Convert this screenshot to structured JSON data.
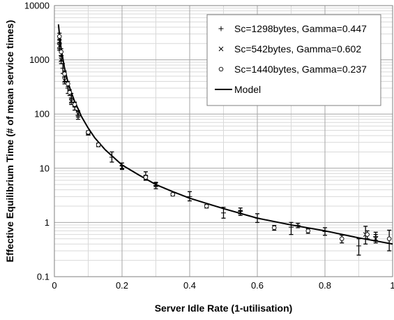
{
  "chart_data": {
    "type": "scatter",
    "title": "",
    "xlabel": "Server Idle Rate (1-utilisation)",
    "ylabel": "Effective Equilibrium Time (# of mean service times)",
    "xlim": [
      0,
      1
    ],
    "ylim": [
      0.1,
      10000
    ],
    "yscale": "log",
    "x_ticks": [
      "0",
      "0.2",
      "0.4",
      "0.6",
      "0.8",
      "1"
    ],
    "y_ticks": [
      "0.1",
      "1",
      "10",
      "100",
      "1000",
      "10000"
    ],
    "grid": true,
    "legend": {
      "position": "top-right",
      "entries": [
        "Sc=1298bytes, Gamma=0.447",
        "Sc=542bytes, Gamma=0.602",
        "Sc=1440bytes, Gamma=0.237",
        "Model"
      ]
    },
    "series": [
      {
        "name": "Sc=1298bytes, Gamma=0.447",
        "marker": "plus",
        "points": [
          {
            "x": 0.015,
            "y": 2000,
            "lo": 1600,
            "hi": 2400
          },
          {
            "x": 0.02,
            "y": 1200,
            "lo": 950,
            "hi": 1450
          },
          {
            "x": 0.025,
            "y": 700,
            "lo": 560,
            "hi": 850
          },
          {
            "x": 0.03,
            "y": 480,
            "lo": 390,
            "hi": 580
          },
          {
            "x": 0.04,
            "y": 300,
            "lo": 240,
            "hi": 360
          },
          {
            "x": 0.05,
            "y": 200,
            "lo": 165,
            "hi": 240
          },
          {
            "x": 0.06,
            "y": 140,
            "lo": 118,
            "hi": 165
          },
          {
            "x": 0.07,
            "y": 95,
            "lo": 80,
            "hi": 115
          },
          {
            "x": 0.1,
            "y": 45,
            "lo": 42,
            "hi": 48
          },
          {
            "x": 0.17,
            "y": 16,
            "lo": 13,
            "hi": 20
          },
          {
            "x": 0.2,
            "y": 11,
            "lo": 9.5,
            "hi": 12.5
          },
          {
            "x": 0.27,
            "y": 7.2,
            "lo": 6,
            "hi": 8.6
          },
          {
            "x": 0.3,
            "y": 4.8,
            "lo": 4.2,
            "hi": 5.5
          },
          {
            "x": 0.4,
            "y": 3,
            "lo": 2.5,
            "hi": 3.7
          },
          {
            "x": 0.5,
            "y": 1.5,
            "lo": 1.2,
            "hi": 1.9
          },
          {
            "x": 0.55,
            "y": 1.6,
            "lo": 1.35,
            "hi": 1.85
          },
          {
            "x": 0.6,
            "y": 1.2,
            "lo": 1,
            "hi": 1.45
          },
          {
            "x": 0.7,
            "y": 0.82,
            "lo": 0.6,
            "hi": 1
          },
          {
            "x": 0.72,
            "y": 0.88,
            "lo": 0.8,
            "hi": 0.96
          },
          {
            "x": 0.8,
            "y": 0.68,
            "lo": 0.58,
            "hi": 0.8
          },
          {
            "x": 0.9,
            "y": 0.37,
            "lo": 0.25,
            "hi": 0.5
          },
          {
            "x": 0.95,
            "y": 0.55,
            "lo": 0.45,
            "hi": 0.66
          }
        ]
      },
      {
        "name": "Sc=542bytes, Gamma=0.602",
        "marker": "cross",
        "points": [
          {
            "x": 0.015,
            "y": 1800,
            "lo": 1500,
            "hi": 2100
          },
          {
            "x": 0.02,
            "y": 1000,
            "lo": 850,
            "hi": 1150
          },
          {
            "x": 0.03,
            "y": 420,
            "lo": 360,
            "hi": 480
          },
          {
            "x": 0.05,
            "y": 170,
            "lo": 150,
            "hi": 190
          },
          {
            "x": 0.07,
            "y": 100,
            "lo": 88,
            "hi": 112
          },
          {
            "x": 0.1,
            "y": 44,
            "lo": 41,
            "hi": 47
          },
          {
            "x": 0.2,
            "y": 10.5,
            "lo": 9.8,
            "hi": 11.2
          },
          {
            "x": 0.3,
            "y": 5,
            "lo": 4.6,
            "hi": 5.4
          },
          {
            "x": 0.55,
            "y": 1.55,
            "lo": 1.45,
            "hi": 1.65
          },
          {
            "x": 0.92,
            "y": 0.6,
            "lo": 0.4,
            "hi": 0.85
          },
          {
            "x": 0.95,
            "y": 0.5,
            "lo": 0.42,
            "hi": 0.6
          }
        ]
      },
      {
        "name": "Sc=1440bytes, Gamma=0.237",
        "marker": "circle",
        "points": [
          {
            "x": 0.015,
            "y": 2700,
            "lo": 2300,
            "hi": 3100
          },
          {
            "x": 0.02,
            "y": 1400,
            "lo": 1200,
            "hi": 1600
          },
          {
            "x": 0.03,
            "y": 550,
            "lo": 480,
            "hi": 620
          },
          {
            "x": 0.04,
            "y": 360,
            "lo": 320,
            "hi": 400
          },
          {
            "x": 0.045,
            "y": 250,
            "lo": 220,
            "hi": 280
          },
          {
            "x": 0.06,
            "y": 150,
            "lo": 135,
            "hi": 165
          },
          {
            "x": 0.1,
            "y": 46,
            "lo": 43,
            "hi": 49
          },
          {
            "x": 0.13,
            "y": 27,
            "lo": 25,
            "hi": 29
          },
          {
            "x": 0.27,
            "y": 6.8,
            "lo": 6.2,
            "hi": 7.4
          },
          {
            "x": 0.35,
            "y": 3.3,
            "lo": 3.1,
            "hi": 3.5
          },
          {
            "x": 0.45,
            "y": 2,
            "lo": 1.85,
            "hi": 2.15
          },
          {
            "x": 0.65,
            "y": 0.8,
            "lo": 0.72,
            "hi": 0.88
          },
          {
            "x": 0.75,
            "y": 0.7,
            "lo": 0.63,
            "hi": 0.77
          },
          {
            "x": 0.85,
            "y": 0.5,
            "lo": 0.42,
            "hi": 0.58
          },
          {
            "x": 0.925,
            "y": 0.6,
            "lo": 0.5,
            "hi": 0.7
          },
          {
            "x": 0.99,
            "y": 0.5,
            "lo": 0.3,
            "hi": 0.72
          }
        ]
      },
      {
        "name": "Model",
        "marker": "line",
        "points": [
          {
            "x": 0.012,
            "y": 4500
          },
          {
            "x": 0.015,
            "y": 2900
          },
          {
            "x": 0.02,
            "y": 1600
          },
          {
            "x": 0.03,
            "y": 700
          },
          {
            "x": 0.04,
            "y": 390
          },
          {
            "x": 0.05,
            "y": 250
          },
          {
            "x": 0.06,
            "y": 170
          },
          {
            "x": 0.07,
            "y": 125
          },
          {
            "x": 0.08,
            "y": 90
          },
          {
            "x": 0.1,
            "y": 55
          },
          {
            "x": 0.12,
            "y": 36
          },
          {
            "x": 0.15,
            "y": 22
          },
          {
            "x": 0.2,
            "y": 11.5
          },
          {
            "x": 0.25,
            "y": 7.5
          },
          {
            "x": 0.3,
            "y": 5
          },
          {
            "x": 0.35,
            "y": 3.7
          },
          {
            "x": 0.4,
            "y": 2.8
          },
          {
            "x": 0.5,
            "y": 1.8
          },
          {
            "x": 0.6,
            "y": 1.2
          },
          {
            "x": 0.7,
            "y": 0.9
          },
          {
            "x": 0.8,
            "y": 0.7
          },
          {
            "x": 0.9,
            "y": 0.52
          },
          {
            "x": 1.0,
            "y": 0.4
          }
        ]
      }
    ]
  }
}
